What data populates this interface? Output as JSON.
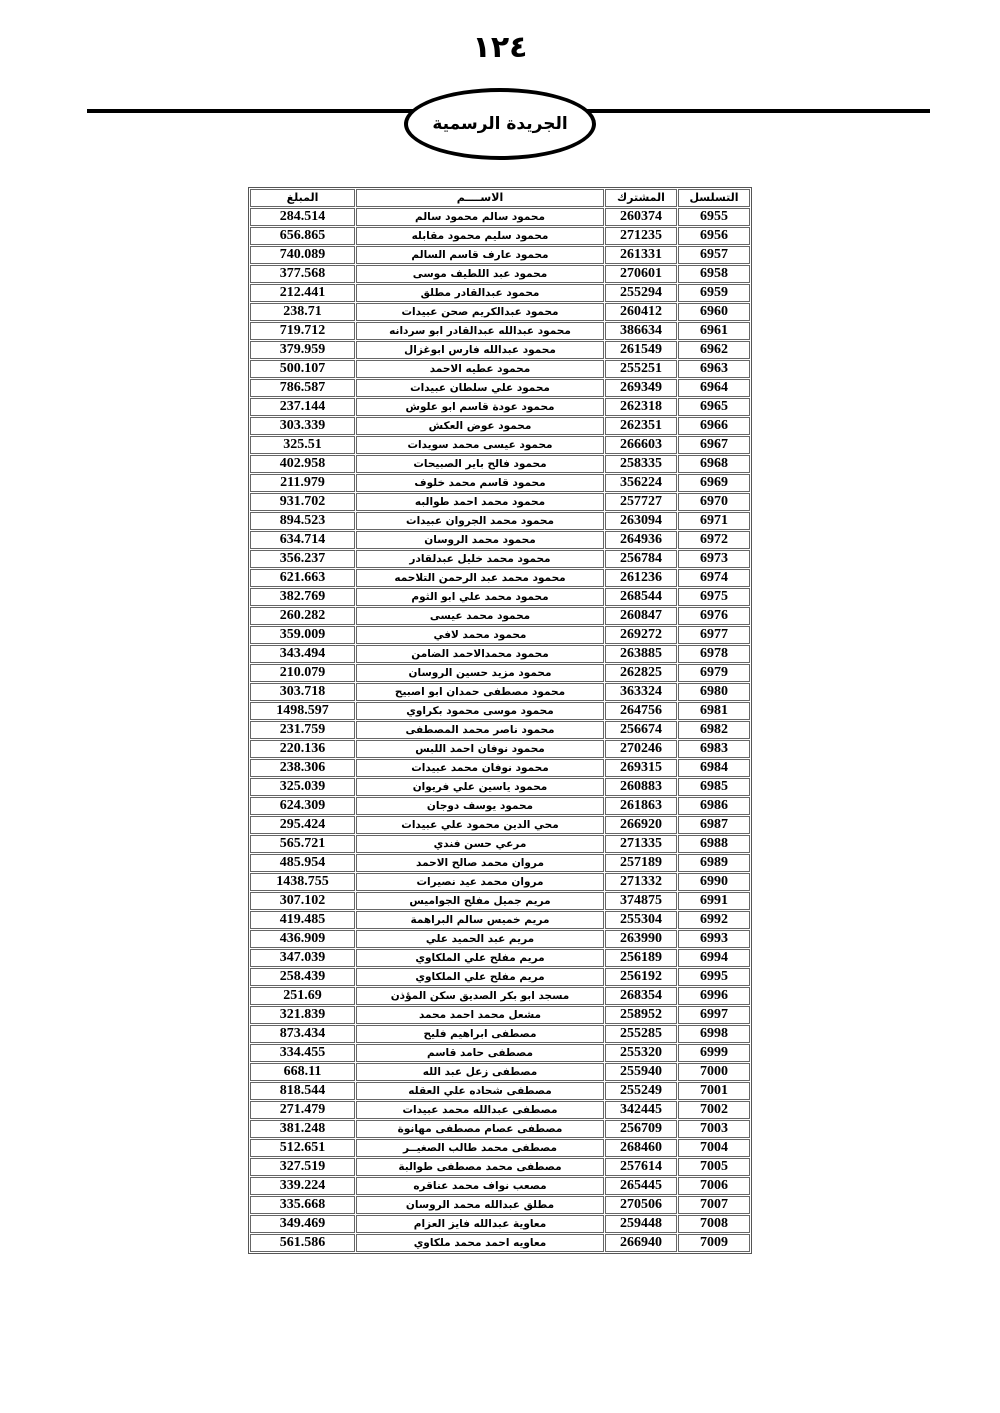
{
  "page_number": "١٢٤",
  "header_title": "الجريدة الرسمية",
  "table": {
    "columns": [
      "التسلسل",
      "المشترك",
      "الاســــم",
      "المبلغ"
    ],
    "rows": [
      [
        "6955",
        "260374",
        "محمود سالم محمود سالم",
        "284.514"
      ],
      [
        "6956",
        "271235",
        "محمود سليم محمود مقابله",
        "656.865"
      ],
      [
        "6957",
        "261331",
        "محمود عارف قاسم السالم",
        "740.089"
      ],
      [
        "6958",
        "270601",
        "محمود عبد اللطيف موسى",
        "377.568"
      ],
      [
        "6959",
        "255294",
        "محمود عبدالقادر مطلق",
        "212.441"
      ],
      [
        "6960",
        "260412",
        "محمود عبدالكريم صحن عبيدات",
        "238.71"
      ],
      [
        "6961",
        "386634",
        "محمود عبدالله عبدالقادر ابو سردانه",
        "719.712"
      ],
      [
        "6962",
        "261549",
        "محمود عبدالله فارس ابوغزال",
        "379.959"
      ],
      [
        "6963",
        "255251",
        "محمود عطيه الاحمد",
        "500.107"
      ],
      [
        "6964",
        "269349",
        "محمود علي سلطان عبيدات",
        "786.587"
      ],
      [
        "6965",
        "262318",
        "محمود عودة قاسم ابو علوش",
        "237.144"
      ],
      [
        "6966",
        "262351",
        "محمود عوض العكش",
        "303.339"
      ],
      [
        "6967",
        "266603",
        "محمود عيسى محمد سويدات",
        "325.51"
      ],
      [
        "6968",
        "258335",
        "محمود فالح باير الصبيحات",
        "402.958"
      ],
      [
        "6969",
        "356224",
        "محمود قاسم محمد خلوف",
        "211.979"
      ],
      [
        "6970",
        "257727",
        "محمود محمد احمد طوالبه",
        "931.702"
      ],
      [
        "6971",
        "263094",
        "محمود محمد الجروان عبيدات",
        "894.523"
      ],
      [
        "6972",
        "264936",
        "محمود محمد الروسان",
        "634.714"
      ],
      [
        "6973",
        "256784",
        "محمود محمد خليل عبدلقادر",
        "356.237"
      ],
      [
        "6974",
        "261236",
        "محمود محمد عبد الرحمن التلاحمه",
        "621.663"
      ],
      [
        "6975",
        "268544",
        "محمود محمد علي ابو الثوم",
        "382.769"
      ],
      [
        "6976",
        "260847",
        "محمود محمد عيسى",
        "260.282"
      ],
      [
        "6977",
        "269272",
        "محمود محمد لافي",
        "359.009"
      ],
      [
        "6978",
        "263885",
        "محمود محمدالاحمد الضامن",
        "343.494"
      ],
      [
        "6979",
        "262825",
        "محمود مزيد حسين الروسان",
        "210.079"
      ],
      [
        "6980",
        "363324",
        "محمود مصطفى حمدان ابو اصبيح",
        "303.718"
      ],
      [
        "6981",
        "264756",
        "محمود موسى محمود بكراوي",
        "1498.597"
      ],
      [
        "6982",
        "256674",
        "محمود ناصر محمد المصطفى",
        "231.759"
      ],
      [
        "6983",
        "270246",
        "محمود نوفان احمد اللبس",
        "220.136"
      ],
      [
        "6984",
        "269315",
        "محمود نوفان محمد عبيدات",
        "238.306"
      ],
      [
        "6985",
        "260883",
        "محمود ياسين علي فريوان",
        "325.039"
      ],
      [
        "6986",
        "261863",
        "محمود يوسف دوجان",
        "624.309"
      ],
      [
        "6987",
        "266920",
        "محي الدين محمود علي عبيدات",
        "295.424"
      ],
      [
        "6988",
        "271335",
        "مرعي حسن فندي",
        "565.721"
      ],
      [
        "6989",
        "257189",
        "مروان محمد صالح الاحمد",
        "485.954"
      ],
      [
        "6990",
        "271332",
        "مروان محمد عيد نصيرات",
        "1438.755"
      ],
      [
        "6991",
        "374875",
        "مريم جميل مفلح الجواميس",
        "307.102"
      ],
      [
        "6992",
        "255304",
        "مريم خميس سالم البراهمة",
        "419.485"
      ],
      [
        "6993",
        "263990",
        "مريم عبد الحميد علي",
        "436.909"
      ],
      [
        "6994",
        "256189",
        "مريم مفلح علي الملكاوي",
        "347.039"
      ],
      [
        "6995",
        "256192",
        "مريم مفلح علي الملكاوي",
        "258.439"
      ],
      [
        "6996",
        "268354",
        "مسجد ابو بكر الصديق سكن المؤذن",
        "251.69"
      ],
      [
        "6997",
        "258952",
        "مشعل محمد احمد محمد",
        "321.839"
      ],
      [
        "6998",
        "255285",
        "مصطفى ابراهيم فليح",
        "873.434"
      ],
      [
        "6999",
        "255320",
        "مصطفى حامد قاسم",
        "334.455"
      ],
      [
        "7000",
        "255940",
        "مصطفى زعل عبد الله",
        "668.11"
      ],
      [
        "7001",
        "255249",
        "مصطفى شحاده علي العقله",
        "818.544"
      ],
      [
        "7002",
        "342445",
        "مصطفى عبدالله محمد عبيدات",
        "271.479"
      ],
      [
        "7003",
        "256709",
        "مصطفى عصام مصطفى مهانوة",
        "381.248"
      ],
      [
        "7004",
        "268460",
        "مصطفى محمد طالب الصغيــر",
        "512.651"
      ],
      [
        "7005",
        "257614",
        "مصطفى محمد مصطفى طوالبة",
        "327.519"
      ],
      [
        "7006",
        "265445",
        "مصعب نواف محمد عناقره",
        "339.224"
      ],
      [
        "7007",
        "270506",
        "مطلق عبدالله محمد الروسان",
        "335.668"
      ],
      [
        "7008",
        "259448",
        "معاوية عبدالله فايز العزام",
        "349.469"
      ],
      [
        "7009",
        "266940",
        "معاويه احمد محمد ملكاوي",
        "561.586"
      ]
    ]
  }
}
